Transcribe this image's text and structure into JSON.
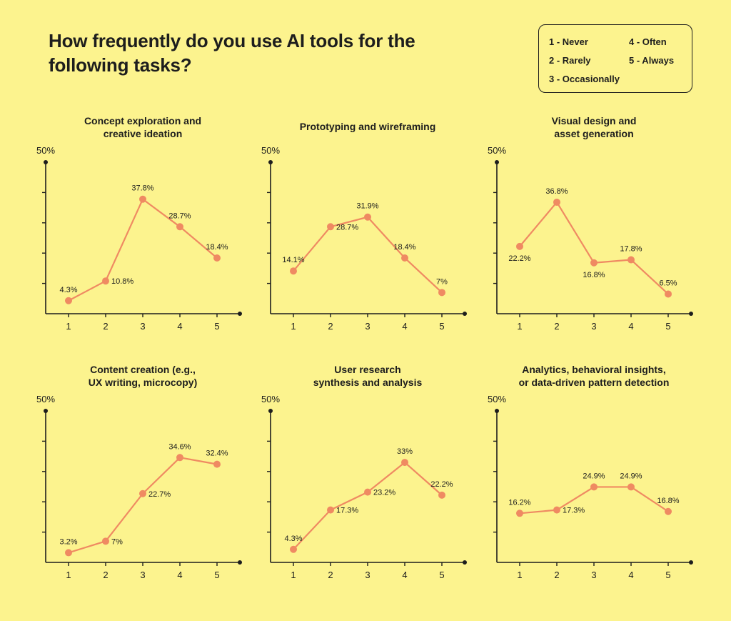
{
  "title": "How frequently do you use AI tools for the following tasks?",
  "legend": {
    "items": [
      "1 - Never",
      "2 - Rarely",
      "3 - Occasionally",
      "4 - Often",
      "5 - Always"
    ]
  },
  "colors": {
    "background": "#fcf38e",
    "line": "#ef8a62",
    "axis": "#1d1d1d"
  },
  "chart_data": [
    {
      "type": "line",
      "title": "Concept exploration and\ncreative ideation",
      "categories": [
        "1",
        "2",
        "3",
        "4",
        "5"
      ],
      "values": [
        4.3,
        10.8,
        37.8,
        28.7,
        18.4
      ],
      "labels": [
        "4.3%",
        "10.8%",
        "37.8%",
        "28.7%",
        "18.4%"
      ],
      "ylim": [
        0,
        50
      ],
      "ymax_label": "50%"
    },
    {
      "type": "line",
      "title": "Prototyping and wireframing",
      "categories": [
        "1",
        "2",
        "3",
        "4",
        "5"
      ],
      "values": [
        14.1,
        28.7,
        31.9,
        18.4,
        7
      ],
      "labels": [
        "14.1%",
        "28.7%",
        "31.9%",
        "18.4%",
        "7%"
      ],
      "ylim": [
        0,
        50
      ],
      "ymax_label": "50%"
    },
    {
      "type": "line",
      "title": "Visual design and\nasset generation",
      "categories": [
        "1",
        "2",
        "3",
        "4",
        "5"
      ],
      "values": [
        22.2,
        36.8,
        16.8,
        17.8,
        6.5
      ],
      "labels": [
        "22.2%",
        "36.8%",
        "16.8%",
        "17.8%",
        "6.5%"
      ],
      "ylim": [
        0,
        50
      ],
      "ymax_label": "50%"
    },
    {
      "type": "line",
      "title": "Content creation (e.g.,\nUX writing, microcopy)",
      "categories": [
        "1",
        "2",
        "3",
        "4",
        "5"
      ],
      "values": [
        3.2,
        7,
        22.7,
        34.6,
        32.4
      ],
      "labels": [
        "3.2%",
        "7%",
        "22.7%",
        "34.6%",
        "32.4%"
      ],
      "ylim": [
        0,
        50
      ],
      "ymax_label": "50%"
    },
    {
      "type": "line",
      "title": "User research\nsynthesis and analysis",
      "categories": [
        "1",
        "2",
        "3",
        "4",
        "5"
      ],
      "values": [
        4.3,
        17.3,
        23.2,
        33,
        22.2
      ],
      "labels": [
        "4.3%",
        "17.3%",
        "23.2%",
        "33%",
        "22.2%"
      ],
      "ylim": [
        0,
        50
      ],
      "ymax_label": "50%"
    },
    {
      "type": "line",
      "title": "Analytics, behavioral insights,\nor data-driven pattern detection",
      "categories": [
        "1",
        "2",
        "3",
        "4",
        "5"
      ],
      "values": [
        16.2,
        17.3,
        24.9,
        24.9,
        16.8
      ],
      "labels": [
        "16.2%",
        "17.3%",
        "24.9%",
        "24.9%",
        "16.8%"
      ],
      "ylim": [
        0,
        50
      ],
      "ymax_label": "50%"
    }
  ]
}
